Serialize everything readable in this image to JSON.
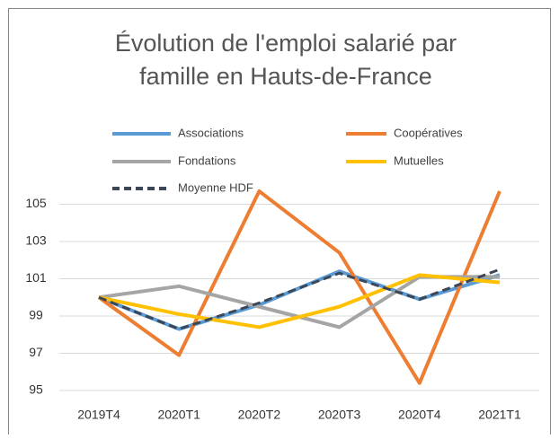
{
  "chart_data": {
    "type": "line",
    "title": [
      "Évolution de l'emploi salarié par",
      "famille en Hauts-de-France"
    ],
    "categories": [
      "2019T4",
      "2020T1",
      "2020T2",
      "2020T3",
      "2020T4",
      "2021T1"
    ],
    "series": [
      {
        "name": "Associations",
        "color": "#5b9bd5",
        "values": [
          100,
          98.3,
          99.6,
          101.4,
          99.9,
          101.2
        ]
      },
      {
        "name": "Coopératives",
        "color": "#ed7d31",
        "values": [
          100,
          96.9,
          105.7,
          102.4,
          95.4,
          105.7
        ]
      },
      {
        "name": "Fondations",
        "color": "#a5a5a5",
        "values": [
          100,
          100.6,
          99.5,
          98.4,
          101.1,
          101.1
        ]
      },
      {
        "name": "Mutuelles",
        "color": "#ffc000",
        "values": [
          100,
          99.1,
          98.4,
          99.5,
          101.2,
          100.8
        ]
      },
      {
        "name": "Moyenne HDF",
        "color": "#3b4656",
        "dashed": true,
        "values": [
          100,
          98.3,
          99.7,
          101.3,
          99.9,
          101.5
        ]
      }
    ],
    "ylim": [
      95,
      106
    ],
    "yticks": [
      95,
      97,
      99,
      101,
      103,
      105
    ],
    "grid": true,
    "legend": "top"
  }
}
